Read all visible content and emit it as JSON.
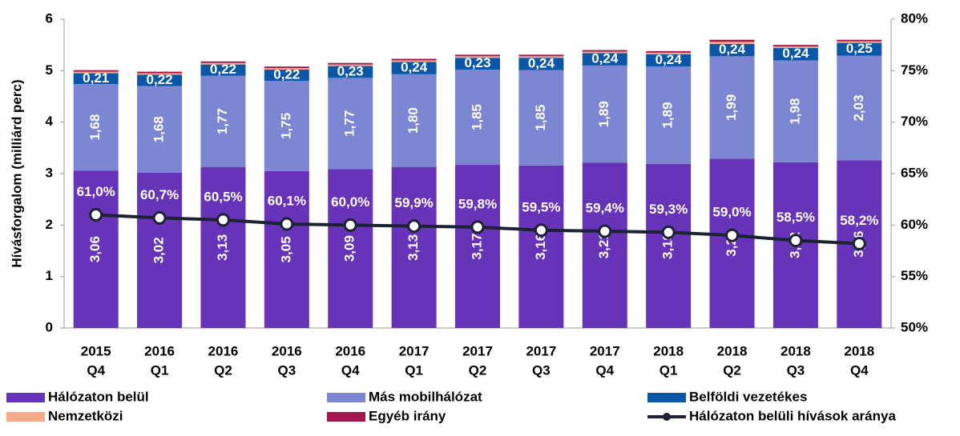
{
  "chart_data": {
    "type": "bar",
    "stacked": true,
    "y_label": "Hívásforgalom (milliárd perc)",
    "categories": [
      [
        "2015",
        "Q4"
      ],
      [
        "2016",
        "Q1"
      ],
      [
        "2016",
        "Q2"
      ],
      [
        "2016",
        "Q3"
      ],
      [
        "2016",
        "Q4"
      ],
      [
        "2017",
        "Q1"
      ],
      [
        "2017",
        "Q2"
      ],
      [
        "2017",
        "Q3"
      ],
      [
        "2017",
        "Q4"
      ],
      [
        "2018",
        "Q1"
      ],
      [
        "2018",
        "Q2"
      ],
      [
        "2018",
        "Q3"
      ],
      [
        "2018",
        "Q4"
      ]
    ],
    "ylim": [
      0,
      6
    ],
    "yticks": [
      0,
      1,
      2,
      3,
      4,
      5,
      6
    ],
    "y2lim": [
      50,
      80
    ],
    "y2ticks": [
      {
        "value": 50,
        "label": "50%"
      },
      {
        "value": 55,
        "label": "55%"
      },
      {
        "value": 60,
        "label": "60%"
      },
      {
        "value": 65,
        "label": "65%"
      },
      {
        "value": 70,
        "label": "70%"
      },
      {
        "value": 75,
        "label": "75%"
      },
      {
        "value": 80,
        "label": "80%"
      }
    ],
    "series": [
      {
        "name": "Hálózaton belül",
        "color": "#6633b9",
        "values": [
          3.06,
          3.02,
          3.13,
          3.05,
          3.09,
          3.13,
          3.17,
          3.16,
          3.21,
          3.19,
          3.29,
          3.22,
          3.26
        ],
        "value_labels": [
          "3,06",
          "3,02",
          "3,13",
          "3,05",
          "3,09",
          "3,13",
          "3,17",
          "3,16",
          "3,21",
          "3,19",
          "3,29",
          "3,22",
          "3,26"
        ]
      },
      {
        "name": "Más mobilhálózat",
        "color": "#7c86d3",
        "values": [
          1.68,
          1.68,
          1.77,
          1.75,
          1.77,
          1.8,
          1.85,
          1.85,
          1.89,
          1.89,
          1.99,
          1.98,
          2.03
        ],
        "value_labels": [
          "1,68",
          "1,68",
          "1,77",
          "1,75",
          "1,77",
          "1,80",
          "1,85",
          "1,85",
          "1,89",
          "1,89",
          "1,99",
          "1,98",
          "2,03"
        ]
      },
      {
        "name": "Belföldi vezetékes",
        "color": "#0b56a6",
        "values": [
          0.21,
          0.22,
          0.22,
          0.22,
          0.23,
          0.24,
          0.23,
          0.24,
          0.24,
          0.24,
          0.24,
          0.24,
          0.25
        ],
        "value_labels": [
          "0,21",
          "0,22",
          "0,22",
          "0,22",
          "0,23",
          "0,24",
          "0,23",
          "0,24",
          "0,24",
          "0,24",
          "0,24",
          "0,24",
          "0,25"
        ]
      },
      {
        "name": "Nemzetközi",
        "color": "#f7a98a",
        "values": [
          0.03,
          0.03,
          0.03,
          0.03,
          0.03,
          0.03,
          0.03,
          0.03,
          0.03,
          0.03,
          0.04,
          0.03,
          0.03
        ]
      },
      {
        "name": "Egyéb irány",
        "color": "#a3174f",
        "values": [
          0.03,
          0.03,
          0.03,
          0.03,
          0.03,
          0.03,
          0.03,
          0.03,
          0.03,
          0.03,
          0.04,
          0.03,
          0.03
        ]
      },
      {
        "name": "Hálózaton belüli hívások aránya",
        "color": "#1b2231",
        "type": "line",
        "axis": "y2",
        "values": [
          61.0,
          60.7,
          60.5,
          60.1,
          60.0,
          59.9,
          59.8,
          59.5,
          59.4,
          59.3,
          59.0,
          58.5,
          58.2
        ],
        "value_labels": [
          "61,0%",
          "60,7%",
          "60,5%",
          "60,1%",
          "60,0%",
          "59,9%",
          "59,8%",
          "59,5%",
          "59,4%",
          "59,3%",
          "59,0%",
          "58,5%",
          "58,2%"
        ]
      }
    ]
  }
}
